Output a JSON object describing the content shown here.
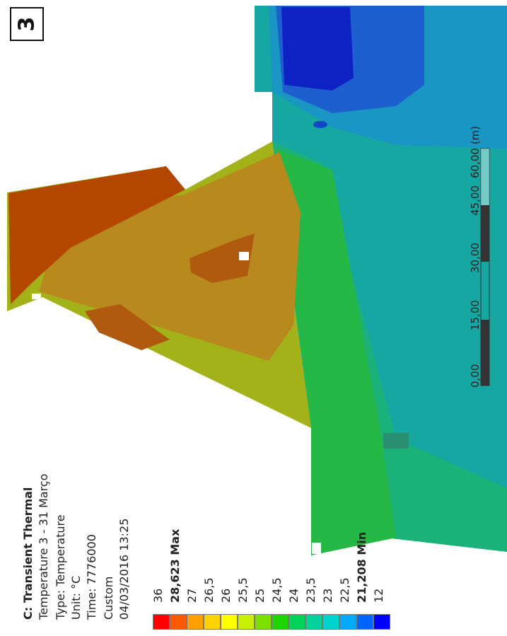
{
  "badge": "3",
  "info": {
    "title": "C: Transient Thermal",
    "lines": [
      "Temperature 3 - 31 Março",
      "Type: Temperature",
      "Unit: °C",
      "Time: 7776000",
      "Custom",
      "04/03/2016 13:25"
    ]
  },
  "legend": {
    "labels": [
      "36",
      "28,623 Max",
      "27",
      "26,5",
      "26",
      "25,5",
      "25",
      "24,5",
      "24",
      "23,5",
      "23",
      "22,5",
      "21,208 Min",
      "12"
    ],
    "colors": [
      "#ff0000",
      "#ff5a00",
      "#ffa000",
      "#ffd200",
      "#ffff00",
      "#c8ee00",
      "#7fe000",
      "#1fd500",
      "#00d25a",
      "#00d29a",
      "#00d2cd",
      "#00aaff",
      "#0064ff",
      "#0000ff"
    ]
  },
  "scale": {
    "ticks": [
      "0,00",
      "15,00",
      "30,00",
      "45,00",
      "60,00 (m)"
    ]
  },
  "colors": {
    "hot": "#b34700",
    "warm": "#b8861c",
    "mid_yellow": "#a8b018",
    "yellow_green": "#8fba1c",
    "green": "#27b840",
    "teal_green": "#1aaa7c",
    "teal": "#16a5a0",
    "cool": "#1aa4b5",
    "blue": "#1454c8",
    "deep_blue": "#0d1ec8"
  }
}
